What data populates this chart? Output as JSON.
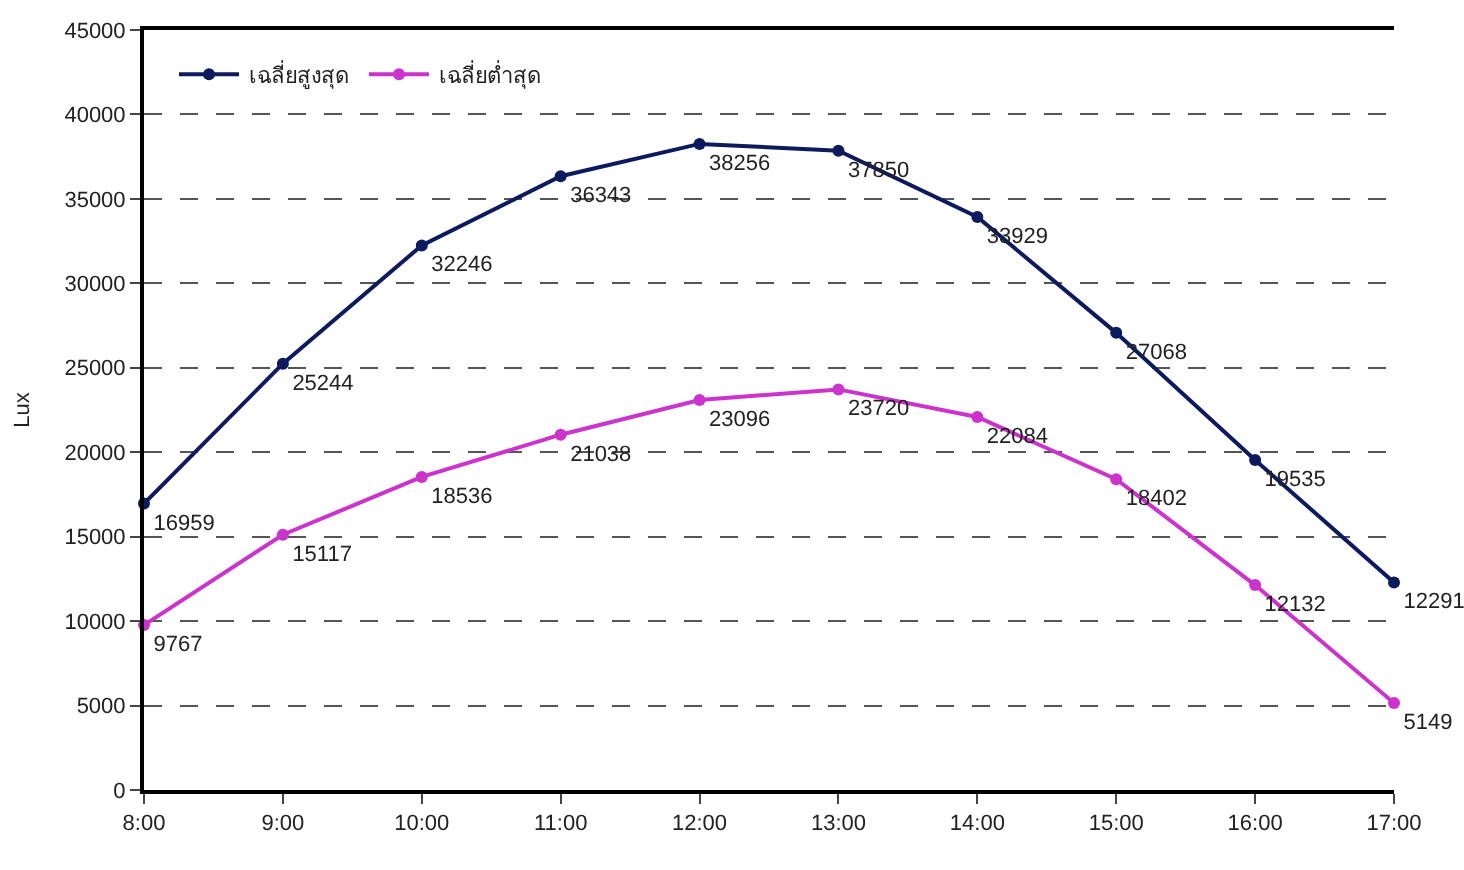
{
  "chart_data": {
    "type": "line",
    "ylabel": "Lux",
    "categories": [
      "8:00",
      "9:00",
      "10:00",
      "11:00",
      "12:00",
      "13:00",
      "14:00",
      "15:00",
      "16:00",
      "17:00"
    ],
    "series": [
      {
        "name": "เฉลี่ยสูงสุด",
        "color": "#0d1a5e",
        "values": [
          16959,
          25244,
          32246,
          36343,
          38256,
          37850,
          33929,
          27068,
          19535,
          12291
        ]
      },
      {
        "name": "เฉลี่ยต่ำสุด",
        "color": "#cc33cc",
        "values": [
          9767,
          15117,
          18536,
          21038,
          23096,
          23720,
          22084,
          18402,
          12132,
          5149
        ]
      }
    ],
    "ylim": [
      0,
      45000
    ],
    "yticks": [
      0,
      5000,
      10000,
      15000,
      20000,
      25000,
      30000,
      35000,
      40000,
      45000
    ],
    "grid": "y",
    "legend": "top left",
    "marker": "circle",
    "line_style": "solid",
    "data_labels": true
  }
}
